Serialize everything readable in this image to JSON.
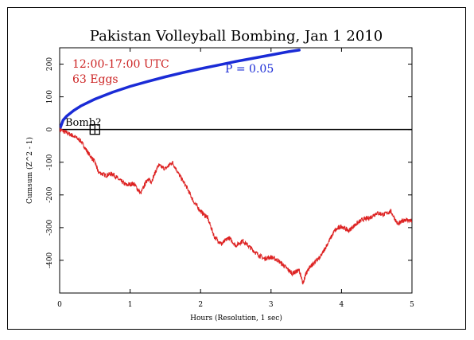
{
  "chart_data": {
    "type": "line",
    "title": "Pakistan Volleyball Bombing, Jan 1 2010",
    "xlabel": "Hours (Resolution, 1 sec)",
    "ylabel": "Cumsum (Z^2 - 1)",
    "xlim": [
      0,
      5
    ],
    "ylim": [
      -500,
      250
    ],
    "x_ticks": [
      0,
      1,
      2,
      3,
      4,
      5
    ],
    "y_ticks": [
      -400,
      -300,
      -200,
      -100,
      0,
      100,
      200
    ],
    "grid": false,
    "annotations": {
      "time_range": "12:00-17:00 UTC",
      "eggs": "63 Eggs",
      "p_label": "P = 0.05",
      "bomb_label": "Bomb?"
    },
    "event_marker": {
      "x": 0.5,
      "y": 0
    },
    "colors": {
      "cumsum": "#dd2222",
      "envelope": "#1a2bd6",
      "baseline": "#000000",
      "annotation": "#cc2222",
      "p_label": "#1a2bd6"
    },
    "series": [
      {
        "type": "envelope",
        "x": [
          0,
          0.05,
          0.1,
          0.2,
          0.3,
          0.5,
          0.75,
          1,
          1.25,
          1.5,
          1.75,
          2,
          2.25,
          2.5,
          2.75,
          3,
          3.25,
          3.4
        ],
        "values": [
          0,
          29,
          41,
          58,
          72,
          93,
          114,
          132,
          147,
          161,
          174,
          186,
          197,
          208,
          218,
          228,
          238,
          243
        ]
      },
      {
        "type": "cumsum",
        "x": [
          0,
          0.1,
          0.2,
          0.3,
          0.4,
          0.5,
          0.55,
          0.65,
          0.75,
          0.85,
          0.95,
          1.05,
          1.15,
          1.25,
          1.3,
          1.4,
          1.5,
          1.6,
          1.7,
          1.8,
          1.9,
          2.0,
          2.1,
          2.2,
          2.3,
          2.4,
          2.5,
          2.6,
          2.7,
          2.8,
          2.9,
          3.0,
          3.1,
          3.2,
          3.3,
          3.4,
          3.45,
          3.5,
          3.55,
          3.6,
          3.7,
          3.8,
          3.9,
          4.0,
          4.1,
          4.2,
          4.3,
          4.4,
          4.5,
          4.6,
          4.7,
          4.8,
          4.9,
          5.0
        ],
        "values": [
          0,
          -10,
          -20,
          -35,
          -70,
          -100,
          -130,
          -140,
          -135,
          -155,
          -170,
          -165,
          -195,
          -150,
          -160,
          -110,
          -120,
          -100,
          -140,
          -175,
          -220,
          -250,
          -270,
          -330,
          -350,
          -330,
          -355,
          -340,
          -360,
          -380,
          -395,
          -390,
          -400,
          -420,
          -440,
          -430,
          -470,
          -440,
          -420,
          -410,
          -390,
          -350,
          -310,
          -295,
          -310,
          -290,
          -275,
          -270,
          -255,
          -260,
          -250,
          -290,
          -275,
          -280
        ]
      }
    ]
  }
}
